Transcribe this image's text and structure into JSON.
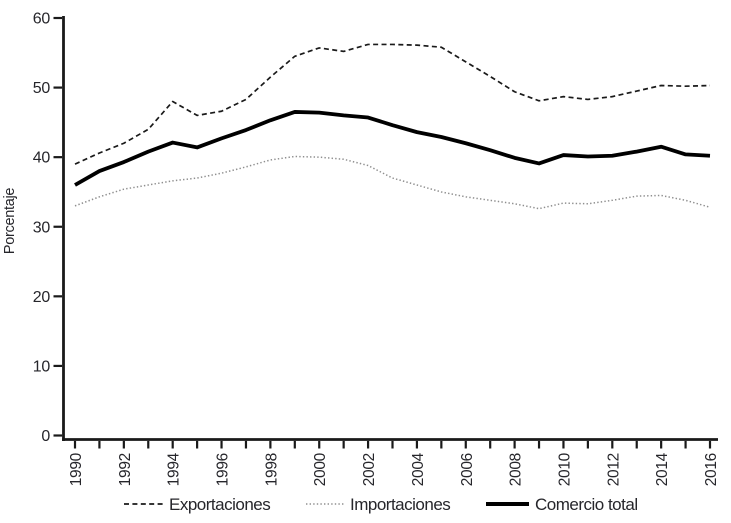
{
  "chart_data": {
    "type": "line",
    "title": "",
    "ylabel": "Porcentaje",
    "xlabel": "",
    "ylim": [
      0,
      60
    ],
    "yticks": [
      0,
      10,
      20,
      30,
      40,
      50,
      60
    ],
    "x": [
      1990,
      1991,
      1992,
      1993,
      1994,
      1995,
      1996,
      1997,
      1998,
      1999,
      2000,
      2001,
      2002,
      2003,
      2004,
      2005,
      2006,
      2007,
      2008,
      2009,
      2010,
      2011,
      2012,
      2013,
      2014,
      2015,
      2016
    ],
    "xticks": [
      1990,
      1992,
      1994,
      1996,
      1998,
      2000,
      2002,
      2004,
      2006,
      2008,
      2010,
      2012,
      2014,
      2016
    ],
    "grid": false,
    "legend_position": "bottom",
    "series": [
      {
        "name": "Exportaciones",
        "style": "dashed",
        "color": "#1a1a1a",
        "values": [
          39.0,
          40.6,
          42.0,
          44.0,
          48.0,
          46.0,
          46.6,
          48.3,
          51.5,
          54.5,
          55.7,
          55.2,
          56.2,
          56.2,
          56.1,
          55.8,
          53.7,
          51.6,
          49.4,
          48.1,
          48.7,
          48.3,
          48.7,
          49.5,
          50.3,
          50.2,
          50.3
        ]
      },
      {
        "name": "Importaciones",
        "style": "dotted",
        "color": "#8f8f8f",
        "values": [
          33.0,
          34.3,
          35.4,
          36.0,
          36.6,
          37.0,
          37.7,
          38.6,
          39.6,
          40.1,
          40.0,
          39.7,
          38.8,
          37.0,
          36.0,
          35.0,
          34.3,
          33.8,
          33.3,
          32.6,
          33.4,
          33.3,
          33.8,
          34.4,
          34.5,
          33.8,
          32.8
        ]
      },
      {
        "name": "Comercio total",
        "style": "solid",
        "color": "#000000",
        "values": [
          36.0,
          38.0,
          39.3,
          40.8,
          42.1,
          41.4,
          42.7,
          43.9,
          45.3,
          46.5,
          46.4,
          46.0,
          45.7,
          44.6,
          43.6,
          42.9,
          42.0,
          41.0,
          39.9,
          39.1,
          40.3,
          40.1,
          40.2,
          40.8,
          41.5,
          40.4,
          40.2
        ]
      }
    ],
    "axis_color": "#1a1a1a",
    "tick_label_color": "#26262b"
  }
}
